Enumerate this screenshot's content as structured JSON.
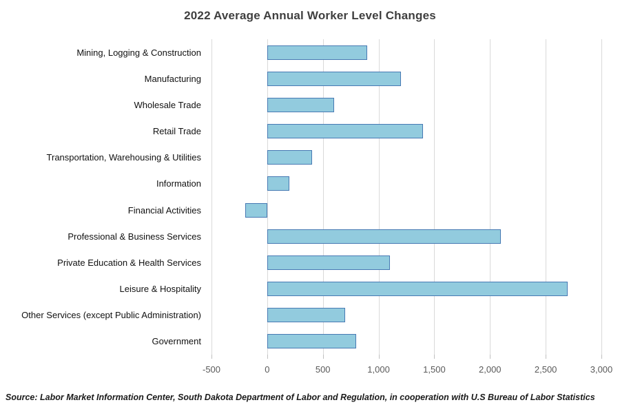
{
  "title": "2022 Average Annual Worker Level Changes",
  "source": "Source: Labor Market Information Center, South Dakota Department of Labor and Regulation, in cooperation with U.S Bureau of Labor Statistics",
  "chart_data": {
    "type": "bar",
    "orientation": "horizontal",
    "title": "2022 Average Annual Worker Level Changes",
    "xlabel": "",
    "ylabel": "",
    "categories": [
      "Mining, Logging & Construction",
      "Manufacturing",
      "Wholesale Trade",
      "Retail Trade",
      "Transportation, Warehousing & Utilities",
      "Information",
      "Financial Activities",
      "Professional & Business Services",
      "Private Education & Health Services",
      "Leisure & Hospitality",
      "Other Services (except Public Administration)",
      "Government"
    ],
    "values": [
      900,
      1200,
      600,
      1400,
      400,
      200,
      -200,
      2100,
      1100,
      2700,
      700,
      800
    ],
    "xlim": [
      -500,
      3000
    ],
    "xticks": [
      -500,
      0,
      500,
      1000,
      1500,
      2000,
      2500,
      3000
    ],
    "xtick_labels": [
      "-500",
      "0",
      "500",
      "1,000",
      "1,500",
      "2,000",
      "2,500",
      "3,000"
    ],
    "grid": true,
    "legend": false,
    "colors": {
      "bar_fill": "#92cbde",
      "bar_border": "#4779b3",
      "gridline": "#d9d9d9",
      "tick": "#bfbfbf",
      "axis_label": "#595959",
      "title": "#3f3f3f"
    }
  }
}
